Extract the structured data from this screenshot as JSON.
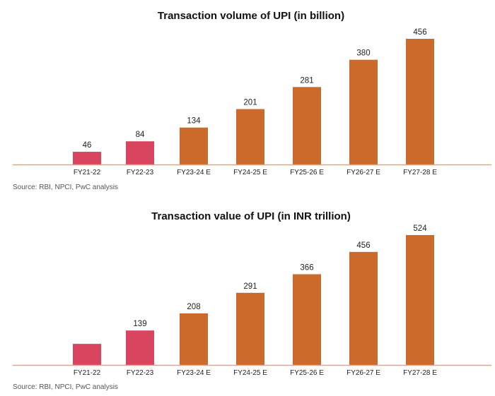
{
  "colors": {
    "actual": "#d9455f",
    "estimate": "#cc6a2c",
    "axis": "#e8a27a"
  },
  "chart_data": [
    {
      "type": "bar",
      "title": "Transaction volume of UPI (in billion)",
      "categories": [
        "FY21-22",
        "FY22-23",
        "FY23-24 E",
        "FY24-25 E",
        "FY25-26 E",
        "FY26-27 E",
        "FY27-28 E"
      ],
      "values": [
        46,
        84,
        134,
        201,
        281,
        380,
        456
      ],
      "data_labels": [
        "46",
        "84",
        "134",
        "201",
        "281",
        "380",
        "456"
      ],
      "estimate": [
        false,
        false,
        true,
        true,
        true,
        true,
        true
      ],
      "source": "Source: RBI, NPCI, PwC analysis",
      "ylim": [
        0,
        456
      ],
      "grid": false
    },
    {
      "type": "bar",
      "title": "Transaction value of UPI (in INR trillion)",
      "categories": [
        "FY21-22",
        "FY22-23",
        "FY23-24 E",
        "FY24-25 E",
        "FY25-26 E",
        "FY26-27 E",
        "FY27-28 E"
      ],
      "values": [
        85,
        139,
        208,
        291,
        366,
        456,
        524
      ],
      "data_labels": [
        "",
        "139",
        "208",
        "291",
        "366",
        "456",
        "524"
      ],
      "estimate": [
        false,
        false,
        true,
        true,
        true,
        true,
        true
      ],
      "source": "Source: RBI, NPCI, PwC analysis",
      "ylim": [
        0,
        524
      ],
      "grid": false
    }
  ]
}
